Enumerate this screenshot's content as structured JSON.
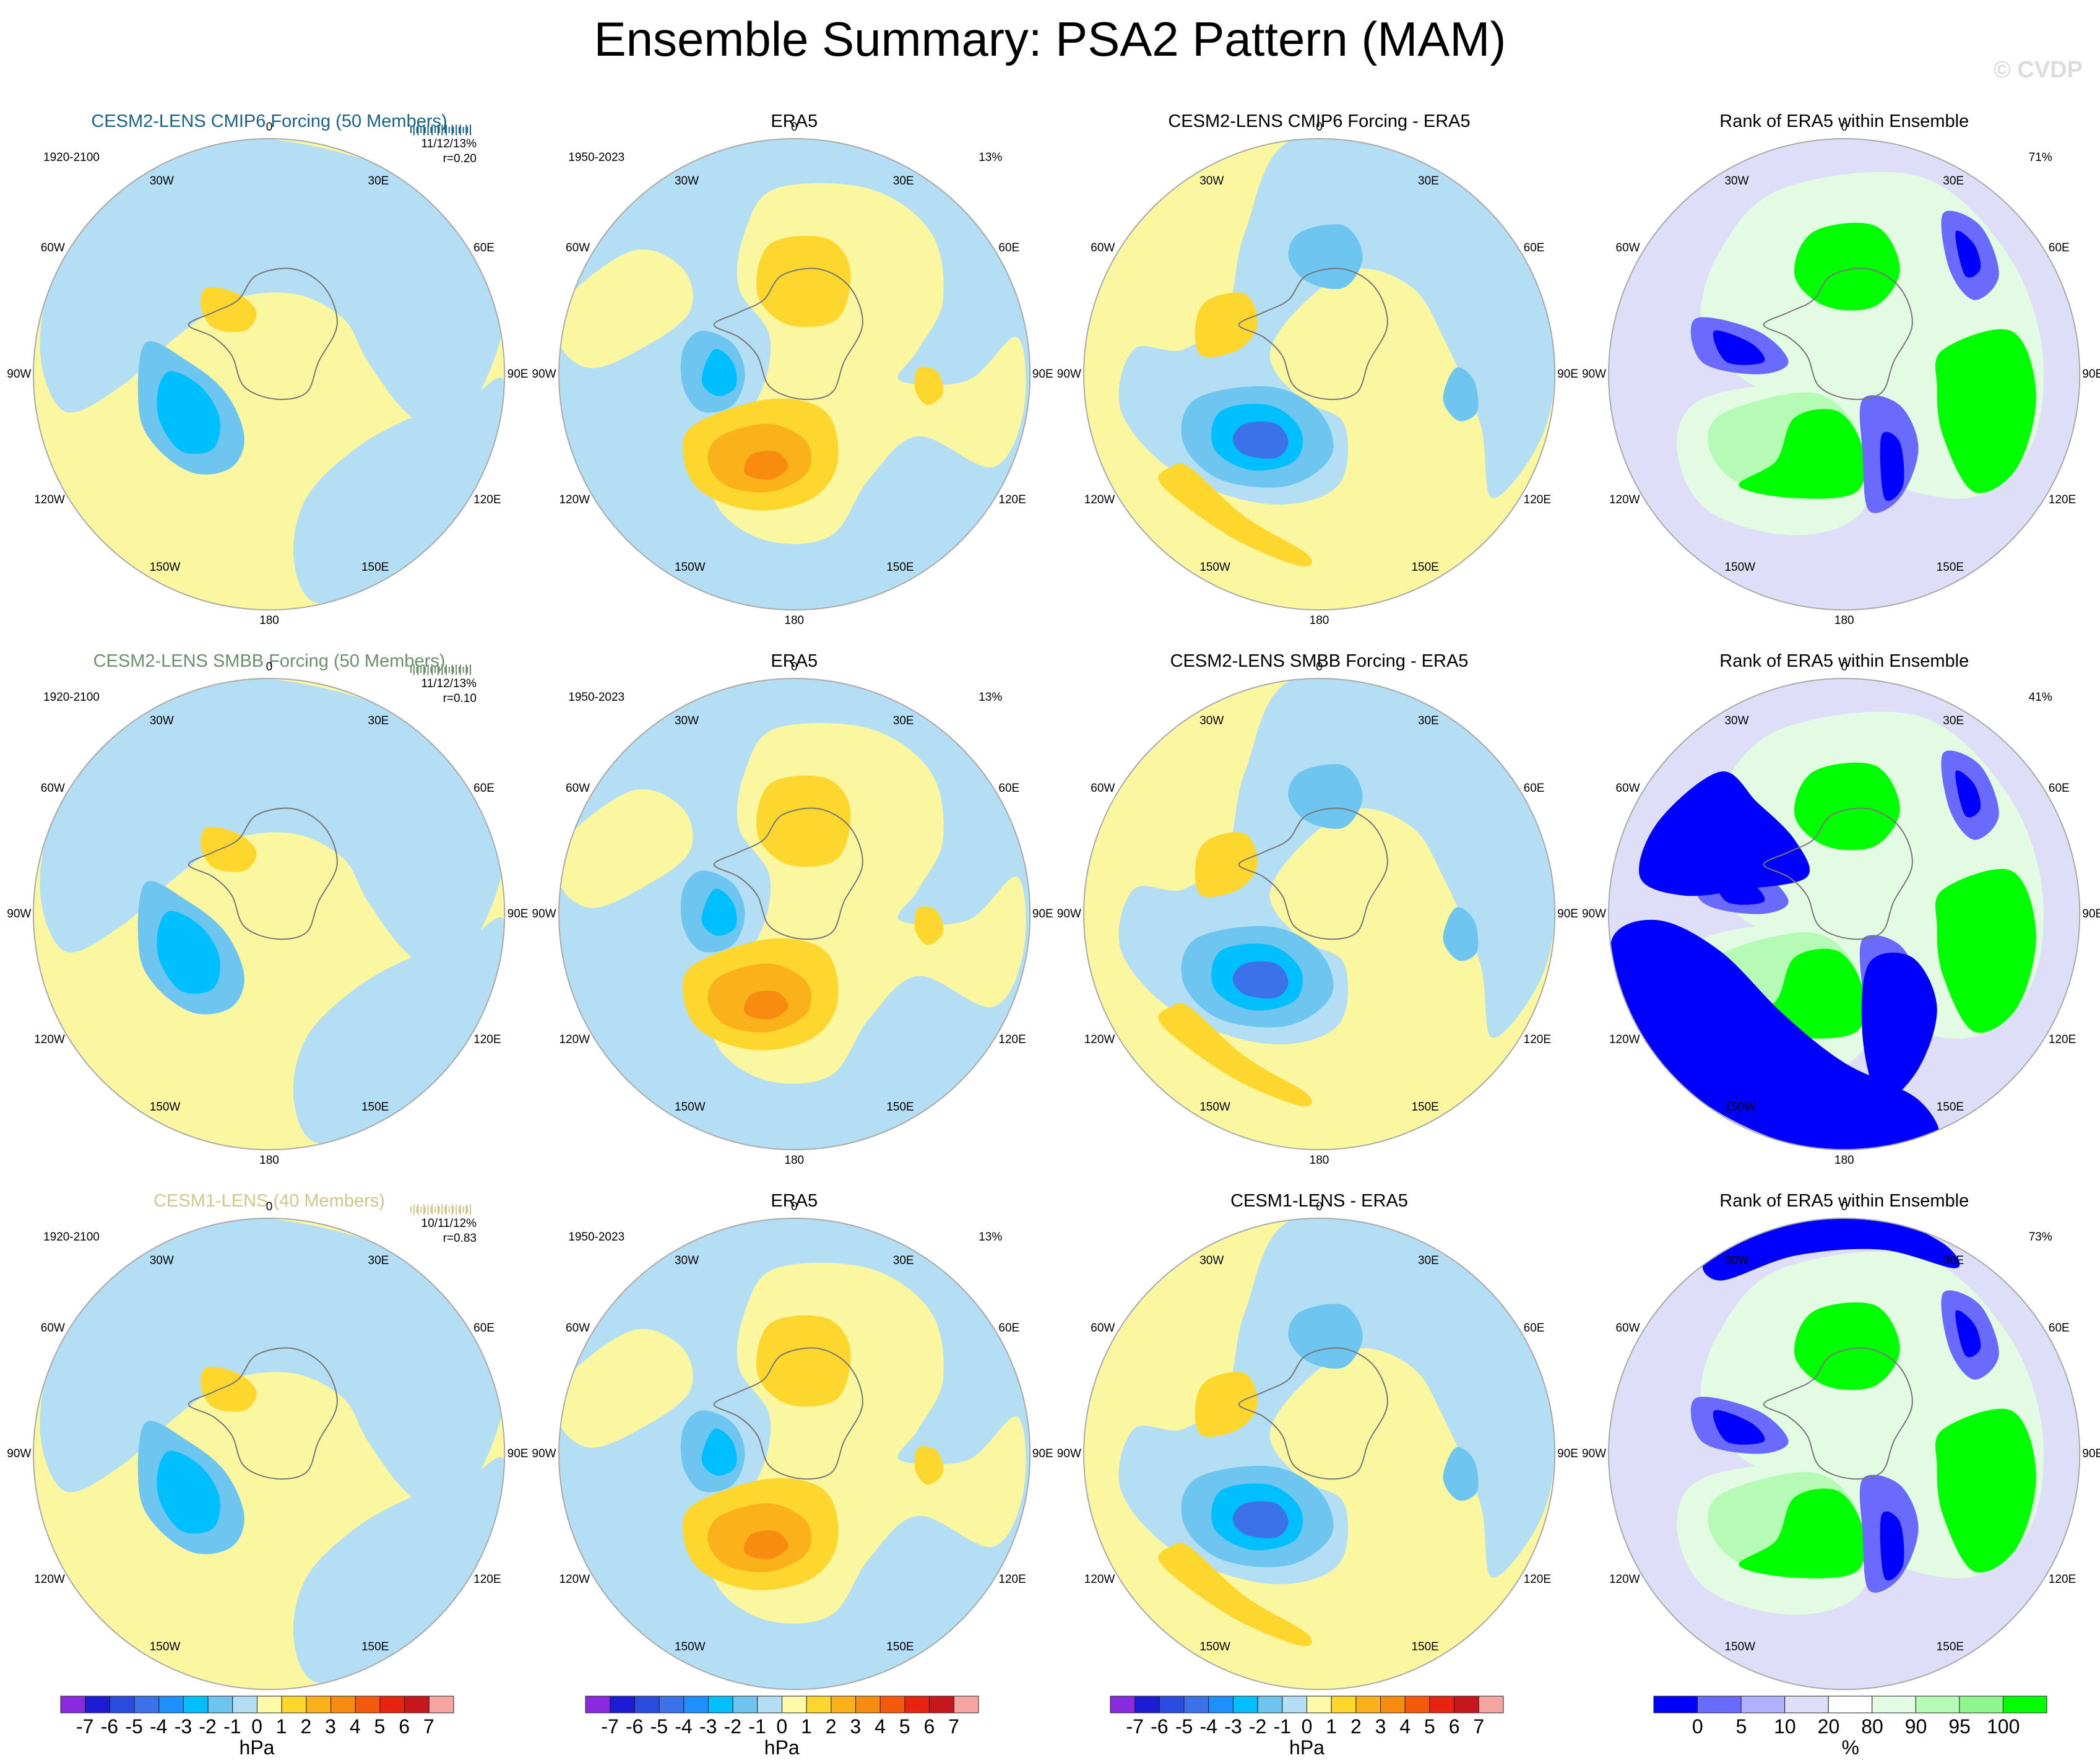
{
  "title": "Ensemble Summary: PSA2 Pattern (MAM)",
  "watermark": "© CVDP",
  "rows": [
    {
      "ensemble": {
        "title": "CESM2-LENS CMIP6 Forcing (50 Members)",
        "title_color": "#19628a",
        "period": "1920-2100",
        "stats": "11/12/13%",
        "corr": "r=0.20"
      },
      "obs": {
        "title": "ERA5",
        "period": "1950-2023",
        "pct": "13%"
      },
      "diff": {
        "title": "CESM2-LENS CMIP6 Forcing - ERA5"
      },
      "rank": {
        "title": "Rank of ERA5 within Ensemble",
        "pct": "71%"
      }
    },
    {
      "ensemble": {
        "title": "CESM2-LENS SMBB Forcing (50 Members)",
        "title_color": "#6c8f6c",
        "period": "1920-2100",
        "stats": "11/12/13%",
        "corr": "r=0.10"
      },
      "obs": {
        "title": "ERA5",
        "period": "1950-2023",
        "pct": "13%"
      },
      "diff": {
        "title": "CESM2-LENS SMBB Forcing - ERA5"
      },
      "rank": {
        "title": "Rank of ERA5 within Ensemble",
        "pct": "41%"
      }
    },
    {
      "ensemble": {
        "title": "CESM1-LENS (40 Members)",
        "title_color": "#cfc88c",
        "period": "1920-2100",
        "stats": "10/11/12%",
        "corr": "r=0.83"
      },
      "obs": {
        "title": "ERA5",
        "period": "1950-2023",
        "pct": "13%"
      },
      "diff": {
        "title": "CESM1-LENS - ERA5"
      },
      "rank": {
        "title": "Rank of ERA5 within Ensemble",
        "pct": "73%"
      }
    }
  ],
  "lon_labels": {
    "top": "0",
    "bottom": "180",
    "upper_left": "30W",
    "upper_right": "30E",
    "mid_upper_left": "60W",
    "mid_upper_right": "60E",
    "left": "90W",
    "right": "90E",
    "mid_lower_left": "120W",
    "mid_lower_right": "120E",
    "lower_left": "150W",
    "lower_right": "150E"
  },
  "hpa_colorbar": {
    "unit": "hPa",
    "labels": [
      "-7",
      "-6",
      "-5",
      "-4",
      "-3",
      "-2",
      "-1",
      "0",
      "1",
      "2",
      "3",
      "4",
      "5",
      "6",
      "7"
    ],
    "colors": [
      "#8a2be2",
      "#1c1cd6",
      "#2a4bdf",
      "#3b72ea",
      "#1e90ff",
      "#00bfff",
      "#6ec6f0",
      "#b3def3",
      "#fffaa8",
      "#fdd72e",
      "#fbb21a",
      "#f78c11",
      "#f55a0c",
      "#e82410",
      "#c7171c",
      "#f7a5a3"
    ]
  },
  "rank_colorbar": {
    "unit": "%",
    "labels": [
      "0",
      "5",
      "10",
      "20",
      "80",
      "90",
      "95",
      "100"
    ],
    "colors": [
      "#0000ff",
      "#6a6aff",
      "#b0b0ff",
      "#dedef8",
      "#ffffff",
      "#e3fbe3",
      "#b5fbb5",
      "#8ef88e",
      "#00ff00"
    ]
  },
  "field_colors": {
    "pos1": "#fbf7a1",
    "pos2": "#fdd72e",
    "pos3": "#fbb21a",
    "pos4": "#f78c11",
    "pos5": "#f55a0c",
    "neg1": "#b3def3",
    "neg2": "#6ec6f0",
    "neg3": "#00bfff",
    "neg4": "#3b72ea",
    "rank_low": "#0000ff",
    "rank_mlow": "#6a6aff",
    "rank_lmid": "#dedef8",
    "rank_hmid": "#e3fbe3",
    "rank_mhigh": "#b5fbb5",
    "rank_high": "#00ff00"
  }
}
